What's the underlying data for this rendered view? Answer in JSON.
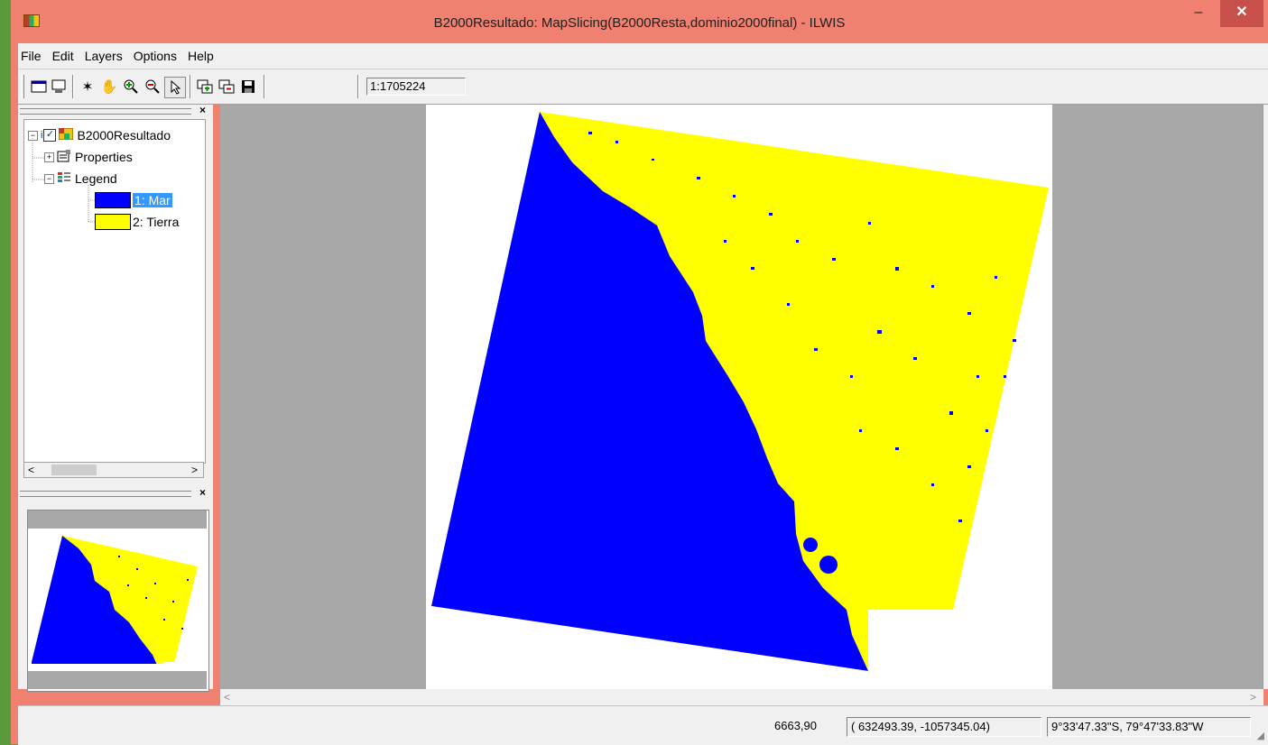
{
  "window": {
    "title": "B2000Resultado: MapSlicing(B2000Resta,dominio2000final) - ILWIS",
    "minimize": "–",
    "close": "✕"
  },
  "menu": [
    "File",
    "Edit",
    "Layers",
    "Options",
    "Help"
  ],
  "toolbar": {
    "buttons": [
      "new-map-icon",
      "display-icon",
      "pointer-star-icon",
      "pan-hand-icon",
      "zoom-in-icon",
      "zoom-out-icon",
      "select-arrow-icon",
      "add-layer-icon",
      "remove-layer-icon",
      "save-icon"
    ],
    "scale": "1:1705224"
  },
  "layer_tree": {
    "root": "B2000Resultado",
    "root_prefix": "i",
    "properties": "Properties",
    "legend": "Legend",
    "items": [
      {
        "label": "1: Mar",
        "color": "#0000ff"
      },
      {
        "label": "2: Tierra",
        "color": "#ffff00"
      }
    ]
  },
  "status": {
    "rowcol": "6663,90",
    "coords": "(  632493.39, -1057345.04)",
    "latlon": "9°33'47.33\"S, 79°47'33.83\"W"
  },
  "colors": {
    "sea": "#0000ff",
    "land": "#ffff00",
    "background": "#a8a8a8",
    "titlebar": "#f08070"
  }
}
